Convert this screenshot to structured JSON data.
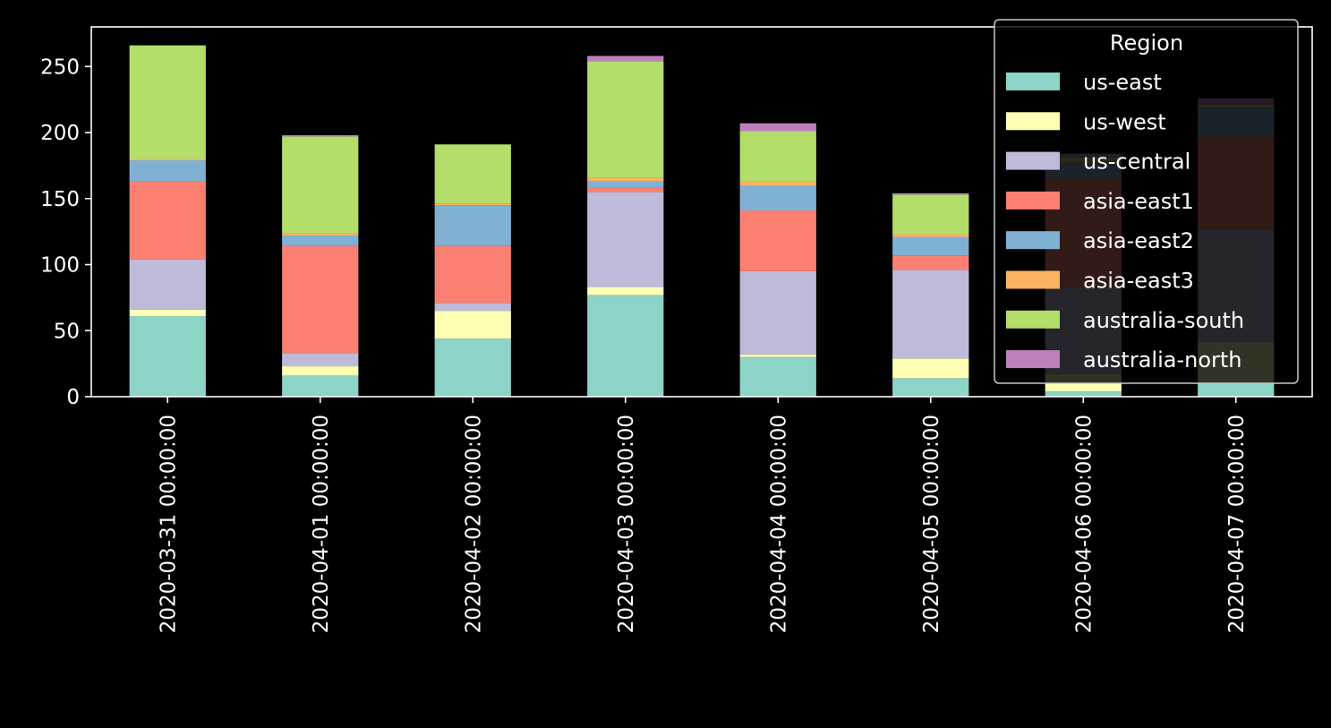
{
  "chart_data": {
    "type": "bar",
    "stacked": true,
    "categories": [
      "2020-03-31 00:00:00",
      "2020-04-01 00:00:00",
      "2020-04-02 00:00:00",
      "2020-04-03 00:00:00",
      "2020-04-04 00:00:00",
      "2020-04-05 00:00:00",
      "2020-04-06 00:00:00",
      "2020-04-07 00:00:00"
    ],
    "series": [
      {
        "name": "us-east",
        "color": "#8dd3c7",
        "values": [
          61,
          16,
          44,
          77,
          30,
          14,
          4,
          10
        ]
      },
      {
        "name": "us-west",
        "color": "#ffffb3",
        "values": [
          5,
          7,
          21,
          6,
          2,
          15,
          13,
          31
        ]
      },
      {
        "name": "us-central",
        "color": "#bebada",
        "values": [
          38,
          10,
          6,
          72,
          63,
          67,
          66,
          86
        ]
      },
      {
        "name": "asia-east1",
        "color": "#fb8072",
        "values": [
          59,
          81,
          43,
          3,
          46,
          11,
          82,
          70
        ]
      },
      {
        "name": "asia-east2",
        "color": "#80b1d3",
        "values": [
          16,
          8,
          31,
          5,
          19,
          14,
          12,
          22
        ]
      },
      {
        "name": "asia-east3",
        "color": "#fdb462",
        "values": [
          1,
          2,
          1,
          3,
          3,
          2,
          1,
          0
        ]
      },
      {
        "name": "australia-south",
        "color": "#b3de69",
        "values": [
          86,
          73,
          45,
          88,
          38,
          30,
          3,
          2
        ]
      },
      {
        "name": "australia-north",
        "color": "#bc80bd",
        "values": [
          0,
          1,
          0,
          4,
          6,
          1,
          3,
          5
        ]
      }
    ],
    "title": "",
    "xlabel": "",
    "ylabel": "",
    "ylim": [
      0,
      280
    ],
    "yticks": [
      0,
      50,
      100,
      150,
      200,
      250
    ],
    "legend": {
      "title": "Region",
      "placement": "top-right"
    },
    "grid": false
  }
}
